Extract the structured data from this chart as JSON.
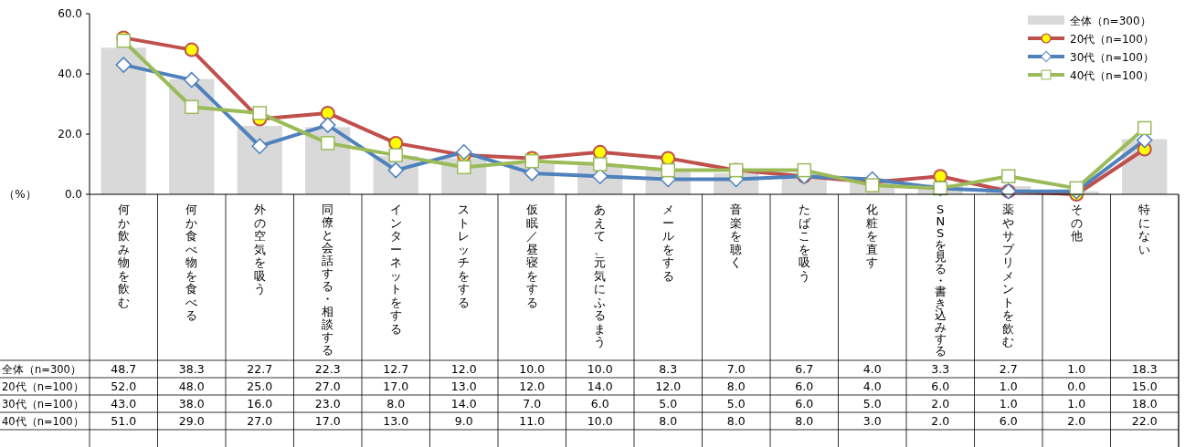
{
  "chart_data": {
    "type": "bar",
    "ylabel": "（%）",
    "ylim": [
      0,
      60
    ],
    "yticks": [
      {
        "value": 0,
        "label": "0.0"
      },
      {
        "value": 20,
        "label": "20.0"
      },
      {
        "value": 40,
        "label": "40.0"
      },
      {
        "value": 60,
        "label": "60.0"
      }
    ],
    "legend": "top right",
    "categories": [
      "何か飲み物を飲む",
      "何か食べ物を食べる",
      "外の空気を吸う",
      "同僚と会話する・相談する",
      "インターネットをする",
      "ストレッチをする",
      "仮眠／昼寝をする",
      "あえて、元気にふるまう",
      "メールをする",
      "音楽を聴く",
      "たばこを吸う",
      "化粧を直す",
      "SNSを見る・書き込みする",
      "薬やサプリメントを飲む",
      "その他",
      "特にない"
    ],
    "series": [
      {
        "name": "全体（n=300）",
        "color": "#d9d9d9",
        "values": [
          48.7,
          38.3,
          22.7,
          22.3,
          12.7,
          12.0,
          10.0,
          10.0,
          8.3,
          7.0,
          6.7,
          4.0,
          3.3,
          2.7,
          1.0,
          18.3
        ],
        "value_labels": [
          "48.7",
          "38.3",
          "22.7",
          "22.3",
          "12.7",
          "12.0",
          "10.0",
          "10.0",
          "8.3",
          "7.0",
          "6.7",
          "4.0",
          "3.3",
          "2.7",
          "1.0",
          "18.3"
        ]
      },
      {
        "name": "20代（n=100）",
        "type": "line",
        "color": "#c0504d",
        "marker": "circle",
        "values": [
          52.0,
          48.0,
          25.0,
          27.0,
          17.0,
          13.0,
          12.0,
          14.0,
          12.0,
          8.0,
          6.0,
          4.0,
          6.0,
          1.0,
          0.0,
          15.0
        ],
        "value_labels": [
          "52.0",
          "48.0",
          "25.0",
          "27.0",
          "17.0",
          "13.0",
          "12.0",
          "14.0",
          "12.0",
          "8.0",
          "6.0",
          "4.0",
          "6.0",
          "1.0",
          "0.0",
          "15.0"
        ]
      },
      {
        "name": "30代（n=100）",
        "type": "line",
        "color": "#4f81bd",
        "marker": "diamond",
        "values": [
          43.0,
          38.0,
          16.0,
          23.0,
          8.0,
          14.0,
          7.0,
          6.0,
          5.0,
          5.0,
          6.0,
          5.0,
          2.0,
          1.0,
          1.0,
          18.0
        ],
        "value_labels": [
          "43.0",
          "38.0",
          "16.0",
          "23.0",
          "8.0",
          "14.0",
          "7.0",
          "6.0",
          "5.0",
          "5.0",
          "6.0",
          "5.0",
          "2.0",
          "1.0",
          "1.0",
          "18.0"
        ]
      },
      {
        "name": "40代（n=100）",
        "type": "line",
        "color": "#9bbb59",
        "marker": "square",
        "values": [
          51.0,
          29.0,
          27.0,
          17.0,
          13.0,
          9.0,
          11.0,
          10.0,
          8.0,
          8.0,
          8.0,
          3.0,
          2.0,
          6.0,
          2.0,
          22.0
        ],
        "value_labels": [
          "51.0",
          "29.0",
          "27.0",
          "17.0",
          "13.0",
          "9.0",
          "11.0",
          "10.0",
          "8.0",
          "8.0",
          "8.0",
          "3.0",
          "2.0",
          "6.0",
          "2.0",
          "22.0"
        ]
      }
    ]
  }
}
